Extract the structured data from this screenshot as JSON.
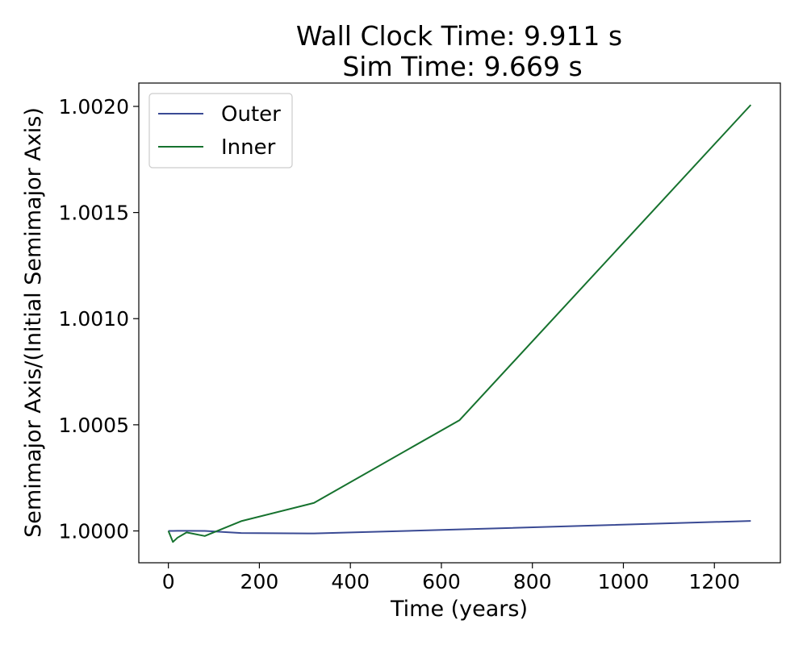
{
  "chart_data": {
    "type": "line",
    "title": [
      "Wall Clock Time: 9.911 s",
      "Sim Time: 9.669 s"
    ],
    "xlabel": "Time (years)",
    "ylabel": "Semimajor Axis/(Initial Semimajor Axis)",
    "xlim": [
      -65,
      1345
    ],
    "ylim": [
      0.99985,
      1.00211
    ],
    "xticks": [
      0,
      200,
      400,
      600,
      800,
      1000,
      1200
    ],
    "xtick_labels": [
      "0",
      "200",
      "400",
      "600",
      "800",
      "1000",
      "1200"
    ],
    "yticks": [
      1.0,
      1.0005,
      1.001,
      1.0015,
      1.002
    ],
    "ytick_labels": [
      "1.0000",
      "1.0005",
      "1.0010",
      "1.0015",
      "1.0020"
    ],
    "grid": false,
    "legend_position": "upper-left",
    "series": [
      {
        "name": "Outer",
        "color": "#3a4a94",
        "x": [
          0,
          10,
          20,
          40,
          80,
          160,
          320,
          640,
          1280
        ],
        "y": [
          1.0,
          1.0,
          1.0000005,
          1.0000005,
          1.0,
          0.99999,
          0.999988,
          1.000007,
          1.000047
        ]
      },
      {
        "name": "Inner",
        "color": "#16722e",
        "x": [
          0,
          10,
          20,
          40,
          80,
          160,
          320,
          640,
          1280
        ],
        "y": [
          1.0,
          0.999948,
          0.999968,
          0.999993,
          0.999976,
          1.000046,
          1.000132,
          1.000522,
          1.002007
        ]
      }
    ]
  }
}
